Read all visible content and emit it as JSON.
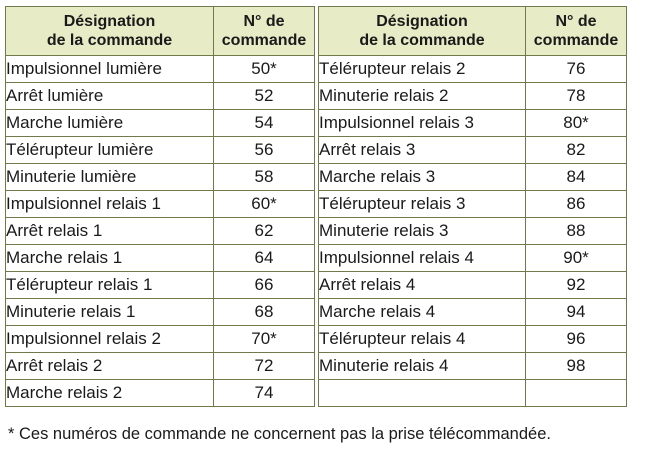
{
  "headers": {
    "designation": "Désignation\nde la commande",
    "number": "N° de\ncommande"
  },
  "left_rows": [
    {
      "name": "Impulsionnel lumière",
      "number": "50*"
    },
    {
      "name": "Arrêt lumière",
      "number": "52"
    },
    {
      "name": "Marche lumière",
      "number": "54"
    },
    {
      "name": "Télérupteur lumière",
      "number": "56"
    },
    {
      "name": "Minuterie lumière",
      "number": "58"
    },
    {
      "name": "Impulsionnel relais 1",
      "number": "60*"
    },
    {
      "name": "Arrêt relais 1",
      "number": "62"
    },
    {
      "name": "Marche relais 1",
      "number": "64"
    },
    {
      "name": "Télérupteur relais 1",
      "number": "66"
    },
    {
      "name": "Minuterie relais 1",
      "number": "68"
    },
    {
      "name": "Impulsionnel relais 2",
      "number": "70*"
    },
    {
      "name": "Arrêt relais 2",
      "number": "72"
    },
    {
      "name": "Marche relais 2",
      "number": "74"
    }
  ],
  "right_rows": [
    {
      "name": "Télérupteur relais 2",
      "number": "76"
    },
    {
      "name": "Minuterie relais 2",
      "number": "78"
    },
    {
      "name": "Impulsionnel relais 3",
      "number": "80*"
    },
    {
      "name": "Arrêt relais 3",
      "number": "82"
    },
    {
      "name": "Marche relais 3",
      "number": "84"
    },
    {
      "name": "Télérupteur relais 3",
      "number": "86"
    },
    {
      "name": "Minuterie relais 3",
      "number": "88"
    },
    {
      "name": "Impulsionnel relais 4",
      "number": "90*"
    },
    {
      "name": "Arrêt relais 4",
      "number": "92"
    },
    {
      "name": "Marche relais 4",
      "number": "94"
    },
    {
      "name": "Télérupteur relais 4",
      "number": "96"
    },
    {
      "name": "Minuterie relais 4",
      "number": "98"
    },
    {
      "name": "",
      "number": ""
    }
  ],
  "footnote": "* Ces numéros de commande ne concernent pas la prise télécommandée.",
  "colors": {
    "header_background": "#e7ebc6",
    "border": "#6f7a4a"
  }
}
